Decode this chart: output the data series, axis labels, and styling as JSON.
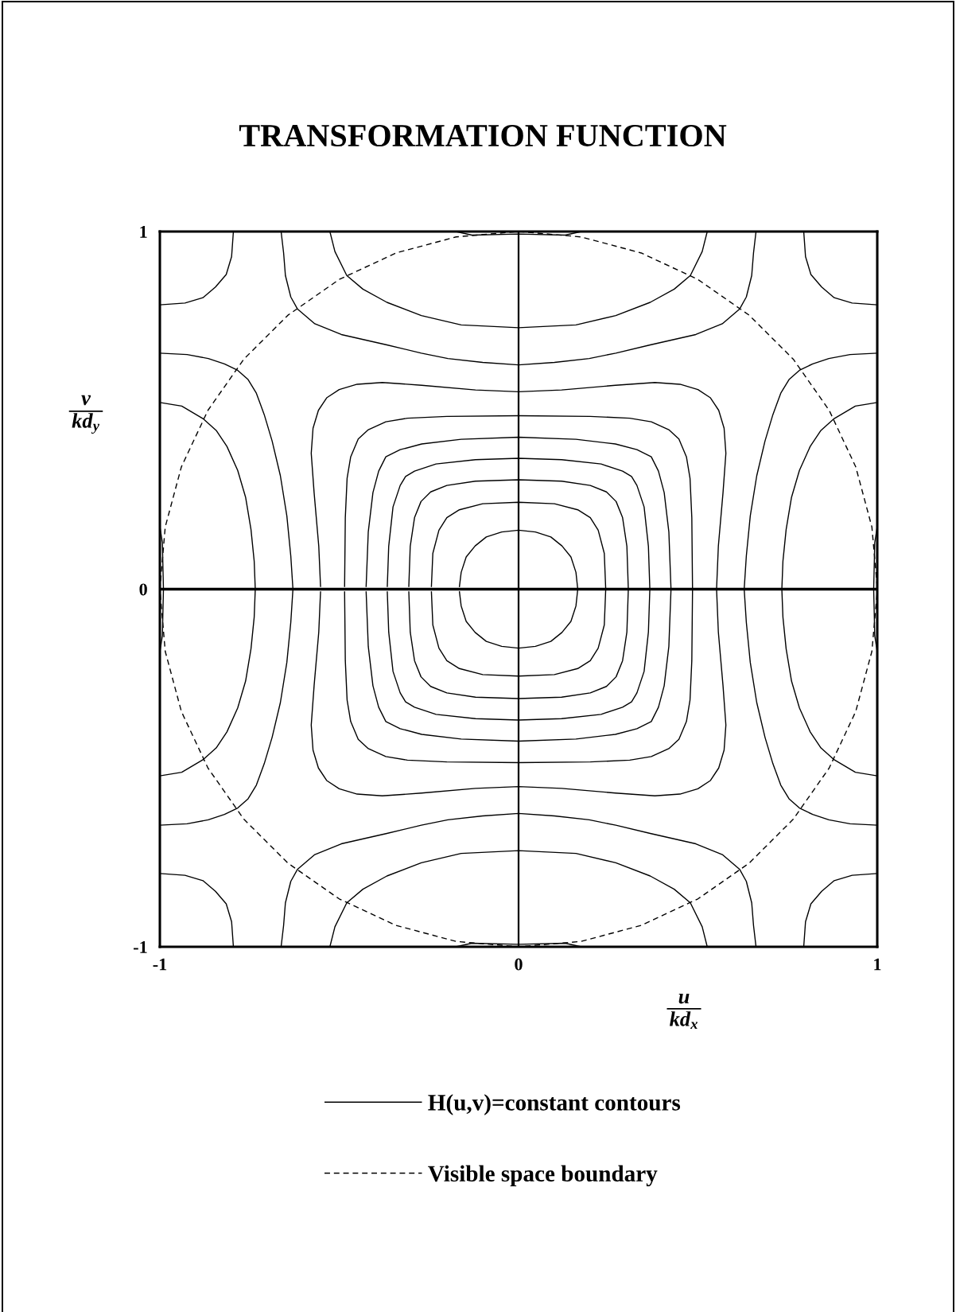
{
  "chart_data": {
    "type": "line",
    "title": "TRANSFORMATION FUNCTION",
    "xlabel": "u\nkd$_{x}$",
    "ylabel": "v\nkd$_{y}$",
    "xlim": [
      -1,
      1
    ],
    "ylim": [
      -1,
      1
    ],
    "xticks": [
      -1,
      0,
      1
    ],
    "yticks": [
      -1,
      0,
      1
    ],
    "legend": "bottom",
    "ref_lines": [
      {
        "axis": "x",
        "value": 0
      },
      {
        "axis": "y",
        "value": 0
      }
    ],
    "series": [
      {
        "name": "H(u,v)=constant contours",
        "color": "#000000",
        "line_style": "solid",
        "x": [
          -0.552,
          -0.557,
          -0.57,
          -0.578,
          -0.573,
          -0.558,
          -0.535,
          -0.5,
          -0.45,
          -0.38,
          -0.27,
          -0.12,
          0,
          0.12,
          0.27,
          0.38,
          0.45,
          0.5,
          0.535,
          0.558,
          0.573,
          0.578,
          0.57,
          0.557,
          0.552,
          0.557,
          0.57,
          0.578,
          0.573,
          0.558,
          0.535,
          0.5,
          0.45,
          0.38,
          0.27,
          0.12,
          0,
          -0.12,
          -0.27,
          -0.38,
          -0.45,
          -0.5,
          -0.535,
          -0.558,
          -0.573,
          -0.578,
          -0.57,
          -0.557,
          -0.552
        ],
        "values": [
          0.006,
          0.12,
          0.27,
          0.38,
          0.45,
          0.5,
          0.535,
          0.558,
          0.573,
          0.578,
          0.57,
          0.557,
          0.552,
          0.557,
          0.57,
          0.578,
          0.573,
          0.558,
          0.535,
          0.5,
          0.45,
          0.38,
          0.27,
          0.12,
          0,
          -0.12,
          -0.27,
          -0.38,
          -0.45,
          -0.5,
          -0.535,
          -0.558,
          -0.573,
          -0.578,
          -0.57,
          -0.557,
          -0.552,
          -0.557,
          -0.57,
          -0.578,
          -0.573,
          -0.558,
          -0.535,
          -0.5,
          -0.45,
          -0.38,
          -0.27,
          -0.12,
          -0.006
        ]
      },
      {
        "color": "#000000",
        "line_style": "solid",
        "x": [
          -0.485,
          -0.483,
          -0.478,
          -0.468,
          -0.447,
          -0.42,
          -0.37,
          -0.31,
          -0.2,
          0,
          0.2,
          0.31,
          0.37,
          0.42,
          0.447,
          0.468,
          0.478,
          0.483,
          0.485,
          0.483,
          0.478,
          0.468,
          0.447,
          0.42,
          0.37,
          0.31,
          0.2,
          0,
          -0.2,
          -0.31,
          -0.37,
          -0.42,
          -0.447,
          -0.468,
          -0.478,
          -0.483,
          -0.485
        ],
        "values": [
          0.006,
          0.2,
          0.31,
          0.37,
          0.42,
          0.445,
          0.468,
          0.478,
          0.483,
          0.485,
          0.483,
          0.478,
          0.468,
          0.445,
          0.42,
          0.37,
          0.31,
          0.2,
          0,
          -0.2,
          -0.31,
          -0.37,
          -0.42,
          -0.445,
          -0.468,
          -0.478,
          -0.483,
          -0.485,
          -0.483,
          -0.478,
          -0.468,
          -0.445,
          -0.42,
          -0.37,
          -0.31,
          -0.2,
          -0.006
        ]
      },
      {
        "color": "#000000",
        "line_style": "solid",
        "x": [
          -0.425,
          -0.419,
          -0.406,
          -0.39,
          -0.37,
          -0.33,
          -0.27,
          -0.16,
          0,
          0.16,
          0.27,
          0.33,
          0.37,
          0.39,
          0.406,
          0.419,
          0.425,
          0.419,
          0.406,
          0.39,
          0.37,
          0.33,
          0.27,
          0.16,
          0,
          -0.16,
          -0.27,
          -0.33,
          -0.37,
          -0.39,
          -0.406,
          -0.419,
          -0.425
        ],
        "values": [
          0.006,
          0.16,
          0.27,
          0.33,
          0.37,
          0.39,
          0.406,
          0.419,
          0.425,
          0.419,
          0.406,
          0.39,
          0.37,
          0.33,
          0.27,
          0.16,
          0,
          -0.16,
          -0.27,
          -0.33,
          -0.37,
          -0.39,
          -0.406,
          -0.419,
          -0.425,
          -0.419,
          -0.406,
          -0.39,
          -0.37,
          -0.33,
          -0.27,
          -0.16,
          -0.006
        ]
      },
      {
        "color": "#000000",
        "line_style": "solid",
        "x": [
          -0.366,
          -0.362,
          -0.35,
          -0.33,
          -0.315,
          -0.29,
          -0.23,
          -0.12,
          0,
          0.12,
          0.23,
          0.29,
          0.315,
          0.33,
          0.35,
          0.362,
          0.366,
          0.362,
          0.35,
          0.33,
          0.315,
          0.29,
          0.23,
          0.12,
          0,
          -0.12,
          -0.23,
          -0.29,
          -0.315,
          -0.33,
          -0.35,
          -0.362,
          -0.366
        ],
        "values": [
          0.006,
          0.12,
          0.23,
          0.29,
          0.315,
          0.33,
          0.35,
          0.362,
          0.366,
          0.362,
          0.35,
          0.33,
          0.315,
          0.29,
          0.23,
          0.12,
          0,
          -0.12,
          -0.23,
          -0.29,
          -0.315,
          -0.33,
          -0.35,
          -0.362,
          -0.366,
          -0.362,
          -0.35,
          -0.33,
          -0.315,
          -0.29,
          -0.23,
          -0.12,
          -0.006
        ]
      },
      {
        "color": "#000000",
        "line_style": "solid",
        "x": [
          -0.306,
          -0.302,
          -0.29,
          -0.272,
          -0.245,
          -0.2,
          -0.12,
          0,
          0.12,
          0.2,
          0.245,
          0.272,
          0.29,
          0.302,
          0.306,
          0.302,
          0.29,
          0.272,
          0.245,
          0.2,
          0.12,
          0,
          -0.12,
          -0.2,
          -0.245,
          -0.272,
          -0.29,
          -0.302,
          -0.306
        ],
        "values": [
          0.006,
          0.12,
          0.2,
          0.245,
          0.272,
          0.29,
          0.302,
          0.306,
          0.302,
          0.29,
          0.272,
          0.245,
          0.2,
          0.12,
          0,
          -0.12,
          -0.2,
          -0.245,
          -0.272,
          -0.29,
          -0.302,
          -0.306,
          -0.302,
          -0.29,
          -0.272,
          -0.245,
          -0.2,
          -0.12,
          -0.006
        ]
      },
      {
        "color": "#000000",
        "line_style": "solid",
        "x": [
          -0.243,
          -0.239,
          -0.222,
          -0.2,
          -0.165,
          -0.1,
          0,
          0.1,
          0.165,
          0.2,
          0.222,
          0.239,
          0.243,
          0.239,
          0.222,
          0.2,
          0.165,
          0.1,
          0,
          -0.1,
          -0.165,
          -0.2,
          -0.222,
          -0.239,
          -0.243
        ],
        "values": [
          0.006,
          0.1,
          0.165,
          0.2,
          0.222,
          0.239,
          0.243,
          0.239,
          0.222,
          0.2,
          0.165,
          0.1,
          0,
          -0.1,
          -0.165,
          -0.2,
          -0.222,
          -0.239,
          -0.243,
          -0.239,
          -0.222,
          -0.2,
          -0.165,
          -0.1,
          -0.006
        ]
      },
      {
        "color": "#000000",
        "line_style": "solid",
        "x": [
          -0.165,
          -0.16,
          -0.146,
          -0.121,
          -0.09,
          -0.047,
          0,
          0.047,
          0.09,
          0.121,
          0.146,
          0.16,
          0.165,
          0.16,
          0.146,
          0.121,
          0.09,
          0.047,
          0,
          -0.047,
          -0.09,
          -0.121,
          -0.146,
          -0.16,
          -0.165
        ],
        "values": [
          0.006,
          0.047,
          0.09,
          0.121,
          0.146,
          0.16,
          0.165,
          0.16,
          0.146,
          0.121,
          0.09,
          0.047,
          0,
          -0.047,
          -0.09,
          -0.121,
          -0.146,
          -0.16,
          -0.165,
          -0.16,
          -0.146,
          -0.121,
          -0.09,
          -0.047,
          -0.006
        ]
      },
      {
        "color": "#000000",
        "line_style": "solid",
        "x": [
          -0.662,
          -0.655,
          -0.65,
          -0.635,
          -0.616,
          -0.568,
          -0.494,
          -0.367,
          -0.271,
          -0.197,
          -0.1,
          0,
          0.1,
          0.197,
          0.271,
          0.367,
          0.494,
          0.568,
          0.616,
          0.635,
          0.65,
          0.655,
          0.662
        ],
        "values": [
          1,
          0.94,
          0.877,
          0.817,
          0.783,
          0.742,
          0.712,
          0.683,
          0.66,
          0.645,
          0.634,
          0.627,
          0.634,
          0.645,
          0.66,
          0.683,
          0.712,
          0.742,
          0.783,
          0.817,
          0.877,
          0.94,
          1
        ]
      },
      {
        "color": "#000000",
        "line_style": "solid",
        "x": [
          -0.662,
          -0.655,
          -0.65,
          -0.635,
          -0.616,
          -0.568,
          -0.494,
          -0.367,
          -0.271,
          -0.197,
          -0.1,
          0,
          0.1,
          0.197,
          0.271,
          0.367,
          0.494,
          0.568,
          0.616,
          0.635,
          0.65,
          0.655,
          0.662
        ],
        "values": [
          -1,
          -0.94,
          -0.877,
          -0.817,
          -0.783,
          -0.742,
          -0.712,
          -0.683,
          -0.66,
          -0.645,
          -0.634,
          -0.627,
          -0.634,
          -0.645,
          -0.66,
          -0.683,
          -0.712,
          -0.742,
          -0.783,
          -0.817,
          -0.877,
          -0.94,
          -1
        ]
      },
      {
        "color": "#000000",
        "line_style": "solid",
        "x": [
          -0.526,
          -0.512,
          -0.479,
          -0.434,
          -0.367,
          -0.271,
          -0.16,
          0,
          0.16,
          0.271,
          0.367,
          0.434,
          0.479,
          0.512,
          0.526
        ],
        "values": [
          1,
          0.944,
          0.877,
          0.839,
          0.802,
          0.765,
          0.739,
          0.731,
          0.739,
          0.765,
          0.802,
          0.839,
          0.877,
          0.944,
          1
        ]
      },
      {
        "color": "#000000",
        "line_style": "solid",
        "x": [
          -0.526,
          -0.512,
          -0.479,
          -0.434,
          -0.367,
          -0.271,
          -0.16,
          0,
          0.16,
          0.271,
          0.367,
          0.434,
          0.479,
          0.512,
          0.526
        ],
        "values": [
          -1,
          -0.944,
          -0.877,
          -0.839,
          -0.802,
          -0.765,
          -0.739,
          -0.731,
          -0.739,
          -0.765,
          -0.802,
          -0.839,
          -0.877,
          -0.944,
          -1
        ]
      },
      {
        "color": "#000000",
        "line_style": "solid",
        "x": [
          -1,
          -0.924,
          -0.865,
          -0.82,
          -0.783,
          -0.754,
          -0.731,
          -0.709,
          -0.687,
          -0.664,
          -0.646,
          -0.635,
          -0.629,
          -0.635,
          -0.646,
          -0.664,
          -0.687,
          -0.709,
          -0.731,
          -0.754,
          -0.783,
          -0.82,
          -0.865,
          -0.924,
          -1
        ],
        "values": [
          0.66,
          0.656,
          0.645,
          0.63,
          0.612,
          0.586,
          0.548,
          0.488,
          0.414,
          0.317,
          0.205,
          0.093,
          0,
          -0.093,
          -0.205,
          -0.317,
          -0.414,
          -0.488,
          -0.548,
          -0.586,
          -0.612,
          -0.63,
          -0.645,
          -0.656,
          -0.66
        ]
      },
      {
        "color": "#000000",
        "line_style": "solid",
        "x": [
          1,
          0.924,
          0.865,
          0.82,
          0.783,
          0.754,
          0.731,
          0.709,
          0.687,
          0.664,
          0.646,
          0.635,
          0.629,
          0.635,
          0.646,
          0.664,
          0.687,
          0.709,
          0.731,
          0.754,
          0.783,
          0.82,
          0.865,
          0.924,
          1
        ],
        "values": [
          0.66,
          0.656,
          0.645,
          0.63,
          0.612,
          0.586,
          0.548,
          0.488,
          0.414,
          0.317,
          0.205,
          0.093,
          0,
          -0.093,
          -0.205,
          -0.317,
          -0.414,
          -0.488,
          -0.548,
          -0.586,
          -0.612,
          -0.63,
          -0.645,
          -0.656,
          -0.66
        ]
      },
      {
        "color": "#000000",
        "line_style": "solid",
        "x": [
          -1,
          -0.939,
          -0.88,
          -0.843,
          -0.813,
          -0.783,
          -0.761,
          -0.746,
          -0.737,
          -0.734,
          -0.737,
          -0.746,
          -0.761,
          -0.783,
          -0.813,
          -0.843,
          -0.88,
          -0.939,
          -1
        ],
        "values": [
          0.522,
          0.512,
          0.477,
          0.444,
          0.399,
          0.332,
          0.257,
          0.167,
          0.078,
          0,
          -0.078,
          -0.167,
          -0.257,
          -0.332,
          -0.399,
          -0.444,
          -0.477,
          -0.512,
          -0.522
        ]
      },
      {
        "color": "#000000",
        "line_style": "solid",
        "x": [
          1,
          0.939,
          0.88,
          0.843,
          0.813,
          0.783,
          0.761,
          0.746,
          0.737,
          0.734,
          0.737,
          0.746,
          0.761,
          0.783,
          0.813,
          0.843,
          0.88,
          0.939,
          1
        ],
        "values": [
          0.522,
          0.512,
          0.477,
          0.444,
          0.399,
          0.332,
          0.257,
          0.167,
          0.078,
          0,
          -0.078,
          -0.167,
          -0.257,
          -0.332,
          -0.399,
          -0.444,
          -0.477,
          -0.512,
          -0.522
        ]
      },
      {
        "color": "#000000",
        "line_style": "solid",
        "x": [
          -0.795,
          -0.8,
          -0.815,
          -0.845,
          -0.88,
          -0.93,
          -1
        ],
        "values": [
          1,
          0.93,
          0.88,
          0.845,
          0.815,
          0.8,
          0.795
        ]
      },
      {
        "color": "#000000",
        "line_style": "solid",
        "x": [
          0.795,
          0.8,
          0.815,
          0.845,
          0.88,
          0.93,
          1
        ],
        "values": [
          1,
          0.93,
          0.88,
          0.845,
          0.815,
          0.8,
          0.795
        ]
      },
      {
        "color": "#000000",
        "line_style": "solid",
        "x": [
          -0.795,
          -0.8,
          -0.815,
          -0.845,
          -0.88,
          -0.93,
          -1
        ],
        "values": [
          -1,
          -0.93,
          -0.88,
          -0.845,
          -0.815,
          -0.8,
          -0.795
        ]
      },
      {
        "color": "#000000",
        "line_style": "solid",
        "x": [
          0.795,
          0.8,
          0.815,
          0.845,
          0.88,
          0.93,
          1
        ],
        "values": [
          -1,
          -0.93,
          -0.88,
          -0.845,
          -0.815,
          -0.8,
          -0.795
        ]
      },
      {
        "color": "#000000",
        "line_style": "solid",
        "x": [
          -0.175,
          -0.13,
          0,
          0.13,
          0.175
        ],
        "values": [
          1,
          0.99,
          0.993,
          0.99,
          1
        ]
      },
      {
        "color": "#000000",
        "line_style": "solid",
        "x": [
          -0.175,
          -0.13,
          0,
          0.13,
          0.175
        ],
        "values": [
          -1,
          -0.99,
          -0.993,
          -0.99,
          -1
        ]
      },
      {
        "color": "#000000",
        "line_style": "solid",
        "x": [
          -1,
          -0.993,
          -0.99,
          -0.993,
          -1
        ],
        "values": [
          0.175,
          0.13,
          0,
          -0.13,
          -0.175
        ]
      },
      {
        "color": "#000000",
        "line_style": "solid",
        "x": [
          1,
          0.993,
          0.99,
          0.993,
          1
        ],
        "values": [
          0.175,
          0.13,
          0,
          -0.13,
          -0.175
        ]
      },
      {
        "name": "Visible space boundary",
        "color": "#000000",
        "line_style": "dashed",
        "x": [
          1,
          0.985,
          0.94,
          0.866,
          0.766,
          0.643,
          0.5,
          0.342,
          0.174,
          0,
          -0.174,
          -0.342,
          -0.5,
          -0.643,
          -0.766,
          -0.866,
          -0.94,
          -0.985,
          -1,
          -0.985,
          -0.94,
          -0.866,
          -0.766,
          -0.643,
          -0.5,
          -0.342,
          -0.174,
          0,
          0.174,
          0.342,
          0.5,
          0.643,
          0.766,
          0.866,
          0.94,
          0.985,
          1
        ],
        "values": [
          0.006,
          0.174,
          0.342,
          0.5,
          0.643,
          0.766,
          0.866,
          0.94,
          0.985,
          1,
          0.985,
          0.94,
          0.866,
          0.766,
          0.643,
          0.5,
          0.342,
          0.174,
          0,
          -0.174,
          -0.342,
          -0.5,
          -0.643,
          -0.766,
          -0.866,
          -0.94,
          -0.985,
          -1,
          -0.985,
          -0.94,
          -0.866,
          -0.766,
          -0.643,
          -0.5,
          -0.342,
          -0.174,
          -0.006
        ]
      }
    ]
  }
}
